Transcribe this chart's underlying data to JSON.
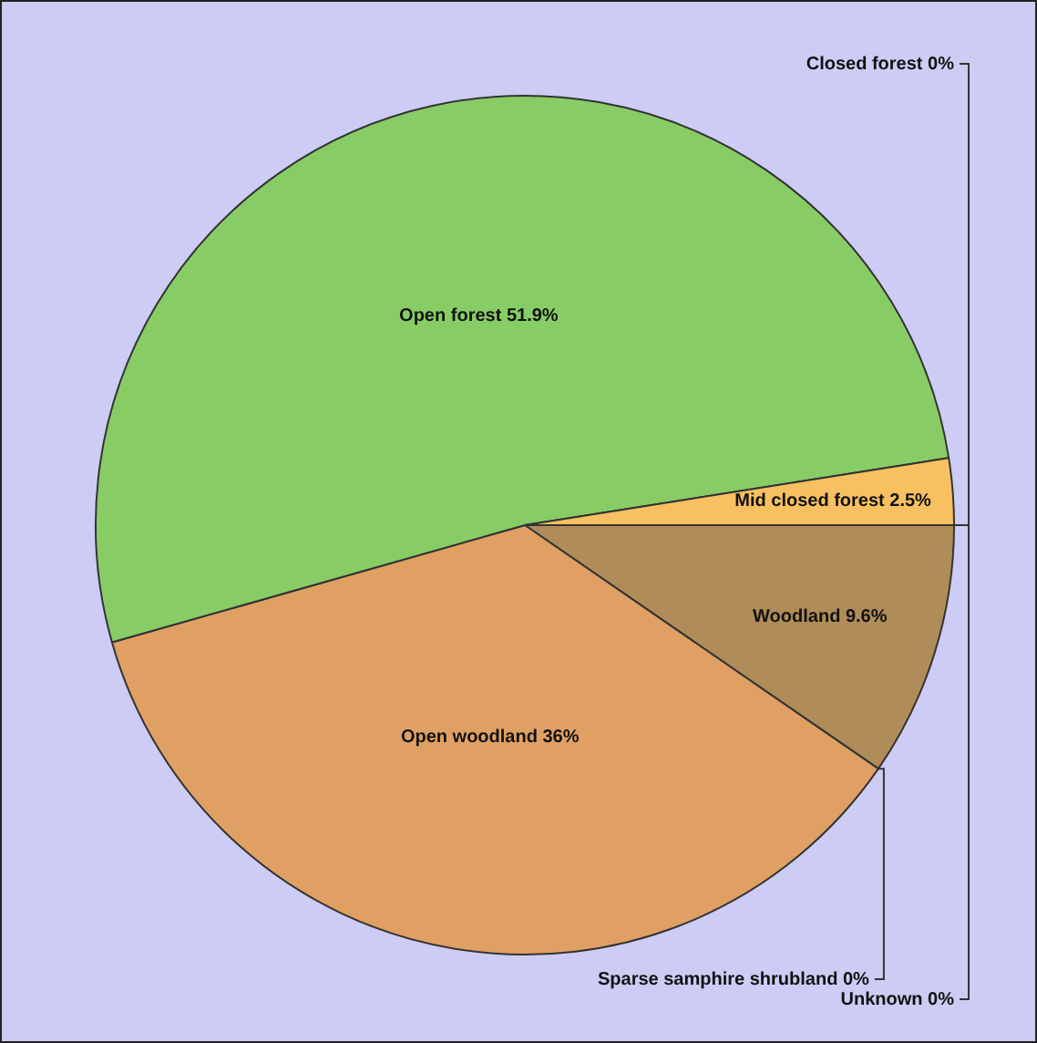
{
  "chart_data": {
    "type": "pie",
    "categories": [
      "Unknown",
      "Woodland",
      "Sparse samphire shrubland",
      "Open woodland",
      "Open forest",
      "Mid closed forest",
      "Closed forest"
    ],
    "values": [
      0,
      9.6,
      0,
      36,
      51.9,
      2.5,
      0
    ],
    "value_labels": [
      "0%",
      "9.6%",
      "0%",
      "36%",
      "51.9%",
      "2.5%",
      "0%"
    ],
    "colors": [
      "#a0a0a0",
      "#b08c58",
      "#e0a064",
      "#e0a064",
      "#88cc66",
      "#f8c060",
      "#5a9a40"
    ],
    "legend": false
  }
}
